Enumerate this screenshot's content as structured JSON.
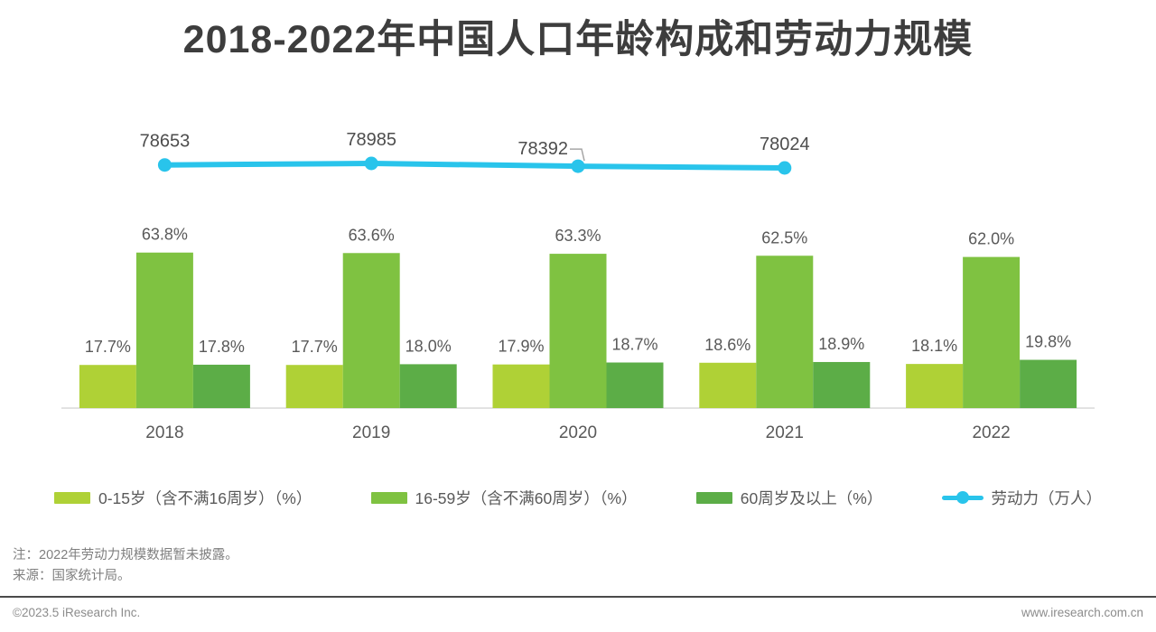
{
  "title": "2018-2022年中国人口年龄构成和劳动力规模",
  "chart_data": {
    "type": "bar+line",
    "categories": [
      "2018",
      "2019",
      "2020",
      "2021",
      "2022"
    ],
    "series": [
      {
        "name": "0-15岁（含不满16周岁）（%）",
        "type": "bar",
        "color": "#AFD136",
        "values": [
          17.7,
          17.7,
          17.9,
          18.6,
          18.1
        ]
      },
      {
        "name": "16-59岁（含不满60周岁）（%）",
        "type": "bar",
        "color": "#7FC241",
        "values": [
          63.8,
          63.6,
          63.3,
          62.5,
          62.0
        ]
      },
      {
        "name": "60周岁及以上（%）",
        "type": "bar",
        "color": "#5CAD47",
        "values": [
          17.8,
          18.0,
          18.7,
          18.9,
          19.8
        ]
      },
      {
        "name": "劳动力（万人）",
        "type": "line",
        "color": "#29C4EB",
        "values": [
          78653,
          78985,
          78392,
          78024,
          null
        ]
      }
    ],
    "bar_unit": "%",
    "line_unit": "万人",
    "axis_color": "#D9D9D9",
    "label_color": "#595959",
    "line_label_color": "#4D4D4D",
    "leader_color": "#A6A6A6",
    "legend_position": "bottom",
    "grid": false,
    "ylim_bar": [
      0,
      70
    ]
  },
  "notes": {
    "note": "注：2022年劳动力规模数据暂未披露。",
    "source": "来源：国家统计局。"
  },
  "footer": {
    "left": "©2023.5 iResearch Inc.",
    "right": "www.iresearch.com.cn"
  }
}
